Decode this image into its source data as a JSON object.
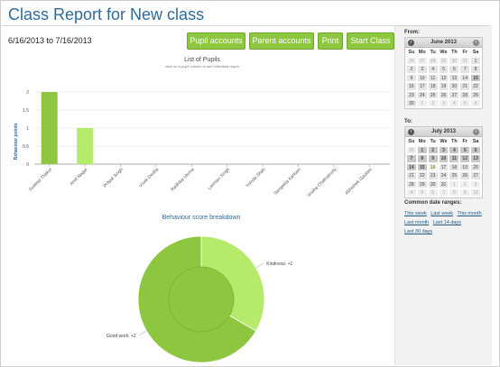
{
  "header": {
    "title": "Class Report for New class"
  },
  "date_range": "6/16/2013 to 7/16/2013",
  "toolbar": {
    "pupil_accounts": "Pupil accounts",
    "parent_accounts": "Parent accounts",
    "print": "Print",
    "start_class": "Start Class"
  },
  "colors": {
    "accent": "#8dc63f",
    "bar_dark": "#8dc63f",
    "bar_light": "#b5ea6a",
    "donut_dark": "#8dc63f",
    "donut_light": "#b5ea6a",
    "title": "#2f6b9a"
  },
  "chart_data": [
    {
      "type": "bar",
      "title": "List of Pupils",
      "subtitle": "click on a pupil column to see individual report",
      "ylabel": "Behaviour points",
      "ylim": [
        0,
        2
      ],
      "yticks": [
        "0",
        "0.5",
        "1",
        "1.5",
        "2"
      ],
      "grid": true,
      "categories": [
        "Sudeep Thakur",
        "Amit Nagar",
        "Pritpal Singh",
        "Vivek Dedha",
        "Radhika Verma",
        "Laxman Singh",
        "Yoinda Shah",
        "Sangeeta Karkam",
        "Sneha Chakraborty",
        "Abhishek Gautam"
      ],
      "values": [
        2,
        1,
        0,
        0,
        0,
        0,
        0,
        0,
        0,
        0
      ]
    },
    {
      "type": "pie",
      "title": "Behaviour score breakdown",
      "labels": [
        "Kindness: +1",
        "Good work: +2"
      ],
      "values": [
        1,
        2
      ]
    }
  ],
  "sidebar": {
    "from_label": "From:",
    "to_label": "To:",
    "from_calendar": {
      "month": "June 2013",
      "dow": [
        "Su",
        "Mo",
        "Tu",
        "We",
        "Th",
        "Fr",
        "Sa"
      ],
      "days": [
        "26",
        "27",
        "28",
        "29",
        "30",
        "31",
        "1",
        "2",
        "3",
        "4",
        "5",
        "6",
        "7",
        "8",
        "9",
        "10",
        "11",
        "12",
        "13",
        "14",
        "15",
        "16",
        "17",
        "18",
        "19",
        "20",
        "21",
        "22",
        "23",
        "24",
        "25",
        "26",
        "27",
        "28",
        "29",
        "30",
        "1",
        "2",
        "3",
        "4",
        "5",
        "6"
      ]
    },
    "to_calendar": {
      "month": "July 2013",
      "dow": [
        "Su",
        "Mo",
        "Tu",
        "We",
        "Th",
        "Fr",
        "Sa"
      ],
      "days": [
        "30",
        "1",
        "2",
        "3",
        "4",
        "5",
        "6",
        "7",
        "8",
        "9",
        "10",
        "11",
        "12",
        "13",
        "14",
        "15",
        "16",
        "17",
        "18",
        "19",
        "20",
        "21",
        "22",
        "23",
        "24",
        "25",
        "26",
        "27",
        "28",
        "29",
        "30",
        "31",
        "1",
        "2",
        "3",
        "4",
        "5",
        "6",
        "7",
        "8",
        "9",
        "10"
      ]
    },
    "ranges_label": "Common date ranges:",
    "ranges": [
      "This week",
      "Last week",
      "This month",
      "Last month",
      "Last 14 days",
      "Last 30 days"
    ]
  }
}
